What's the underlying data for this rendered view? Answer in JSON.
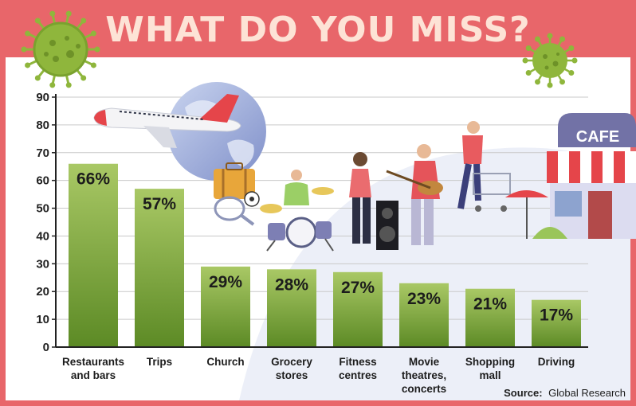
{
  "colors": {
    "frame": "#e8666a",
    "panel": "#ffffff",
    "title_text": "#fde3d6",
    "bar_top": "#a9c865",
    "bar_bottom": "#5c8a25",
    "virus": "#8fb63c"
  },
  "chart_data": {
    "type": "bar",
    "title": "WHAT DO YOU MISS?",
    "categories": [
      [
        "Restaurants",
        "and bars"
      ],
      [
        "Trips"
      ],
      [
        "Church"
      ],
      [
        "Grocery",
        "stores"
      ],
      [
        "Fitness",
        "centres"
      ],
      [
        "Movie",
        "theatres,",
        "concerts"
      ],
      [
        "Shopping",
        "mall"
      ],
      [
        "Driving"
      ]
    ],
    "values": [
      66,
      57,
      29,
      28,
      27,
      23,
      21,
      17
    ],
    "value_labels": [
      "66%",
      "57%",
      "29%",
      "28%",
      "27%",
      "23%",
      "21%",
      "17%"
    ],
    "ylim": [
      0,
      90
    ],
    "yticks": [
      0,
      10,
      20,
      30,
      40,
      50,
      60,
      70,
      80,
      90
    ],
    "grid": true,
    "source_label": "Source:",
    "source_value": "Global Research",
    "cafe_sign": "CAFE"
  }
}
